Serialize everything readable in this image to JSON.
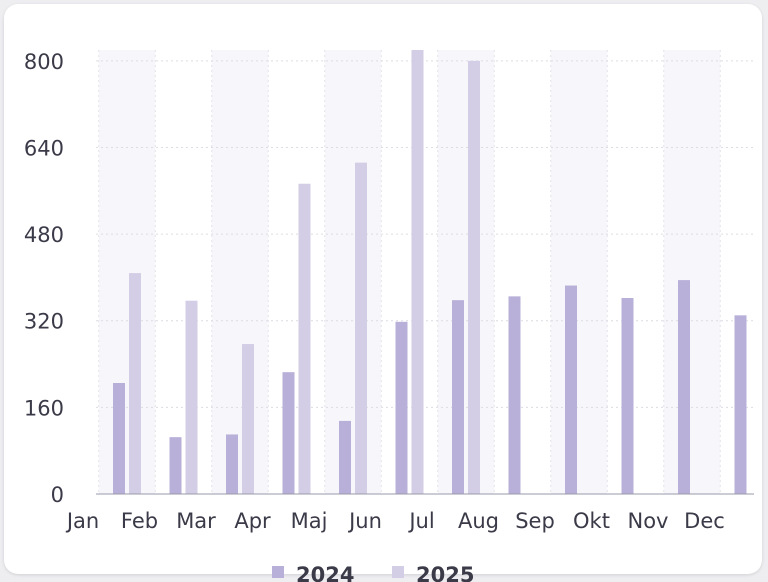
{
  "chart_data": {
    "type": "bar",
    "categories": [
      "Jan",
      "Feb",
      "Mar",
      "Apr",
      "Maj",
      "Jun",
      "Jul",
      "Aug",
      "Sep",
      "Okt",
      "Nov",
      "Dec"
    ],
    "series": [
      {
        "name": "2024",
        "color": "#b8b0d8",
        "values": [
          205,
          105,
          110,
          225,
          135,
          318,
          358,
          365,
          385,
          362,
          395,
          330
        ]
      },
      {
        "name": "2025",
        "color": "#d3cde6",
        "values": [
          408,
          357,
          277,
          573,
          612,
          820,
          800,
          null,
          null,
          null,
          null,
          null
        ]
      }
    ],
    "y_ticks": [
      0,
      160,
      320,
      480,
      640,
      800
    ],
    "ylim": [
      0,
      820
    ],
    "grid": true,
    "legend": "bottom",
    "title": "",
    "xlabel": "",
    "ylabel": ""
  }
}
